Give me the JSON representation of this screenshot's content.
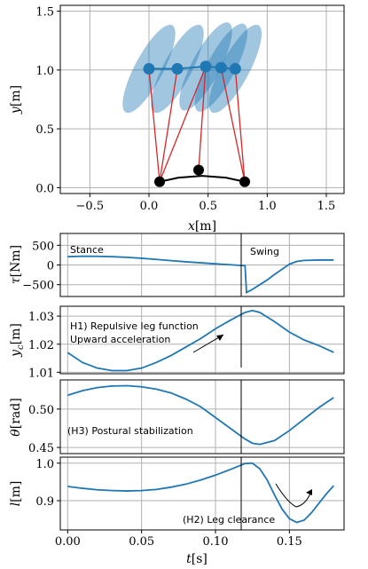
{
  "chart_data": [
    {
      "type": "scatter",
      "xlabel": "x[m]",
      "ylabel": "y[m]",
      "xlim": [
        -0.75,
        1.65
      ],
      "ylim": [
        -0.05,
        1.55
      ],
      "xticks": [
        "−0.5",
        "0.0",
        "0.5",
        "1.0",
        "1.5"
      ],
      "xtick_values": [
        -0.5,
        0.0,
        0.5,
        1.0,
        1.5
      ],
      "yticks": [
        "0.0",
        "0.5",
        "1.0",
        "1.5"
      ],
      "ytick_values": [
        0.0,
        0.5,
        1.0,
        1.5
      ],
      "grid": true,
      "body_points": [
        {
          "x": 0.0,
          "y": 1.01
        },
        {
          "x": 0.24,
          "y": 1.01
        },
        {
          "x": 0.48,
          "y": 1.03
        },
        {
          "x": 0.61,
          "y": 1.02
        },
        {
          "x": 0.73,
          "y": 1.01
        }
      ],
      "feet": [
        {
          "x": 0.09,
          "y": 0.05
        },
        {
          "x": 0.42,
          "y": 0.15
        },
        {
          "x": 0.81,
          "y": 0.05
        }
      ],
      "legs": [
        {
          "from": [
            0.0,
            1.01
          ],
          "to": [
            0.09,
            0.05
          ]
        },
        {
          "from": [
            0.24,
            1.01
          ],
          "to": [
            0.09,
            0.05
          ]
        },
        {
          "from": [
            0.48,
            1.03
          ],
          "to": [
            0.09,
            0.05
          ]
        },
        {
          "from": [
            0.48,
            1.03
          ],
          "to": [
            0.42,
            0.15
          ]
        },
        {
          "from": [
            0.61,
            1.02
          ],
          "to": [
            0.81,
            0.05
          ]
        },
        {
          "from": [
            0.73,
            1.01
          ],
          "to": [
            0.81,
            0.05
          ]
        }
      ],
      "foot_arc": [
        [
          0.09,
          0.05
        ],
        [
          0.25,
          0.085
        ],
        [
          0.45,
          0.1
        ],
        [
          0.65,
          0.085
        ],
        [
          0.81,
          0.05
        ]
      ],
      "ellipses": [
        {
          "cx": 0.0,
          "cy": 1.01,
          "rx": 0.12,
          "ry": 0.42,
          "angle_deg": 28
        },
        {
          "cx": 0.24,
          "cy": 1.01,
          "rx": 0.12,
          "ry": 0.42,
          "angle_deg": 28
        },
        {
          "cx": 0.48,
          "cy": 1.03,
          "rx": 0.12,
          "ry": 0.42,
          "angle_deg": 28
        },
        {
          "cx": 0.61,
          "cy": 1.02,
          "rx": 0.12,
          "ry": 0.42,
          "angle_deg": 28
        },
        {
          "cx": 0.73,
          "cy": 1.01,
          "rx": 0.12,
          "ry": 0.42,
          "angle_deg": 28
        }
      ]
    },
    {
      "type": "line",
      "ylabel": "τ[Nm]",
      "ylim": [
        -800,
        800
      ],
      "yticks": [
        "500",
        "0",
        "−500"
      ],
      "ytick_values": [
        500,
        0,
        -500
      ],
      "annotations": [
        "Stance",
        "Swing"
      ],
      "x": [
        0.0,
        0.01,
        0.02,
        0.03,
        0.04,
        0.05,
        0.06,
        0.07,
        0.08,
        0.09,
        0.1,
        0.11,
        0.12,
        0.121,
        0.125,
        0.13,
        0.135,
        0.14,
        0.145,
        0.15,
        0.155,
        0.16,
        0.17,
        0.18
      ],
      "y": [
        210,
        222,
        220,
        210,
        195,
        170,
        140,
        110,
        80,
        55,
        30,
        5,
        -20,
        -700,
        -620,
        -500,
        -380,
        -240,
        -110,
        20,
        90,
        115,
        125,
        125
      ]
    },
    {
      "type": "line",
      "ylabel": "y_c[m]",
      "ylim": [
        1.0095,
        1.0335
      ],
      "yticks": [
        "1.03",
        "1.02",
        "1.01"
      ],
      "ytick_values": [
        1.03,
        1.02,
        1.01
      ],
      "annotations": [
        "H1) Repulsive leg function",
        "Upward acceleration"
      ],
      "x": [
        0.0,
        0.01,
        0.02,
        0.03,
        0.04,
        0.05,
        0.06,
        0.07,
        0.08,
        0.09,
        0.1,
        0.11,
        0.12,
        0.125,
        0.13,
        0.14,
        0.15,
        0.16,
        0.17,
        0.18
      ],
      "y": [
        1.017,
        1.0135,
        1.0115,
        1.0106,
        1.0106,
        1.0115,
        1.0135,
        1.016,
        1.019,
        1.022,
        1.0255,
        1.0285,
        1.0313,
        1.032,
        1.0313,
        1.028,
        1.0243,
        1.0215,
        1.0195,
        1.0171
      ]
    },
    {
      "type": "line",
      "ylabel": "θ[rad]",
      "ylim": [
        0.442,
        0.538
      ],
      "yticks": [
        "0.50",
        "0.45"
      ],
      "ytick_values": [
        0.5,
        0.45
      ],
      "annotations": [
        "(H3) Postural stabilization"
      ],
      "x": [
        0.0,
        0.01,
        0.02,
        0.03,
        0.04,
        0.05,
        0.06,
        0.07,
        0.08,
        0.09,
        0.1,
        0.11,
        0.12,
        0.125,
        0.13,
        0.14,
        0.15,
        0.16,
        0.17,
        0.18
      ],
      "y": [
        0.518,
        0.524,
        0.528,
        0.53,
        0.5305,
        0.529,
        0.526,
        0.521,
        0.513,
        0.503,
        0.489,
        0.475,
        0.461,
        0.4555,
        0.454,
        0.459,
        0.472,
        0.487,
        0.502,
        0.515
      ]
    },
    {
      "type": "line",
      "xlabel": "t[s]",
      "ylabel": "l[m]",
      "xlim": [
        -0.005,
        0.187
      ],
      "ylim": [
        0.822,
        1.016
      ],
      "xticks": [
        "0.00",
        "0.05",
        "0.10",
        "0.15"
      ],
      "xtick_values": [
        0.0,
        0.05,
        0.1,
        0.15
      ],
      "yticks": [
        "1.0",
        "0.9"
      ],
      "ytick_values": [
        1.0,
        0.9
      ],
      "annotations": [
        "(H2) Leg clearance"
      ],
      "x": [
        0.0,
        0.01,
        0.02,
        0.03,
        0.04,
        0.05,
        0.06,
        0.07,
        0.08,
        0.09,
        0.1,
        0.11,
        0.12,
        0.125,
        0.13,
        0.135,
        0.14,
        0.145,
        0.15,
        0.155,
        0.16,
        0.165,
        0.17,
        0.175,
        0.18
      ],
      "y": [
        0.938,
        0.933,
        0.929,
        0.927,
        0.926,
        0.927,
        0.93,
        0.936,
        0.944,
        0.955,
        0.968,
        0.983,
        0.999,
        1.0,
        0.985,
        0.955,
        0.915,
        0.878,
        0.852,
        0.842,
        0.848,
        0.868,
        0.893,
        0.918,
        0.94
      ]
    }
  ]
}
